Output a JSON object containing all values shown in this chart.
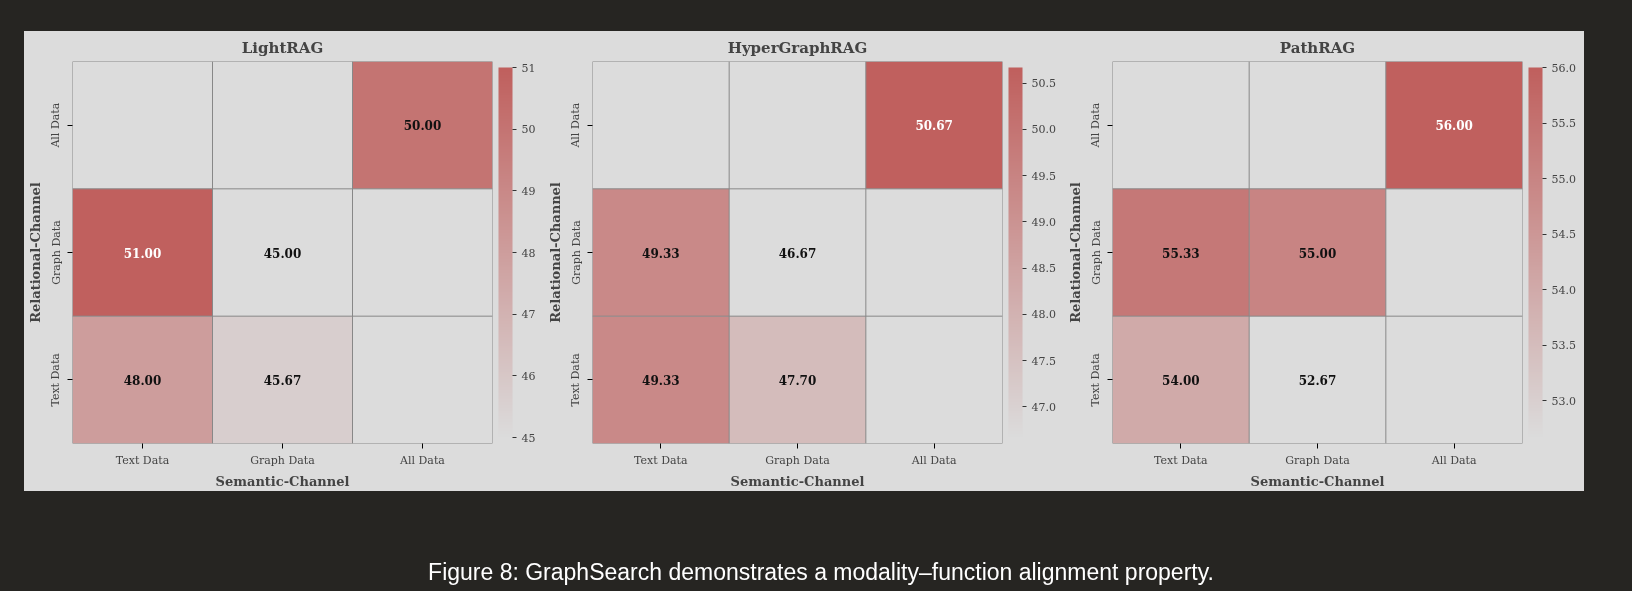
{
  "chart_data": [
    {
      "type": "heatmap",
      "title": "LightRAG",
      "xlabel": "Semantic-Channel",
      "ylabel": "Relational-Channel",
      "categories": [
        "Text Data",
        "Graph Data",
        "All Data"
      ],
      "y_categories": [
        "All Data",
        "Graph Data",
        "Text Data"
      ],
      "cells": [
        [
          null,
          null,
          50.0
        ],
        [
          51.0,
          45.0,
          null
        ],
        [
          48.0,
          45.67,
          null
        ]
      ],
      "cell_labels": [
        [
          null,
          null,
          "50.00"
        ],
        [
          "51.00",
          "45.00",
          null
        ],
        [
          "48.00",
          "45.67",
          null
        ]
      ],
      "clim": [
        45,
        51
      ],
      "cticks": [
        45,
        46,
        47,
        48,
        49,
        50,
        51
      ],
      "grid": true
    },
    {
      "type": "heatmap",
      "title": "HyperGraphRAG",
      "xlabel": "Semantic-Channel",
      "ylabel": "Relational-Channel",
      "categories": [
        "Text Data",
        "Graph Data",
        "All Data"
      ],
      "y_categories": [
        "All Data",
        "Graph Data",
        "Text Data"
      ],
      "cells": [
        [
          null,
          null,
          50.67
        ],
        [
          49.33,
          46.67,
          null
        ],
        [
          49.33,
          47.7,
          null
        ]
      ],
      "cell_labels": [
        [
          null,
          null,
          "50.67"
        ],
        [
          "49.33",
          "46.67",
          null
        ],
        [
          "49.33",
          "47.70",
          null
        ]
      ],
      "clim": [
        46.67,
        50.67
      ],
      "cticks": [
        {
          "value": 47,
          "label": "47.0"
        },
        47.5,
        {
          "value": 48,
          "label": "48.0"
        },
        48.5,
        {
          "value": 49,
          "label": "49.0"
        },
        49.5,
        {
          "value": 50,
          "label": "50.0"
        },
        50.5
      ],
      "grid": true
    },
    {
      "type": "heatmap",
      "title": "PathRAG",
      "xlabel": "Semantic-Channel",
      "ylabel": "Relational-Channel",
      "categories": [
        "Text Data",
        "Graph Data",
        "All Data"
      ],
      "y_categories": [
        "All Data",
        "Graph Data",
        "Text Data"
      ],
      "cells": [
        [
          null,
          null,
          56.0
        ],
        [
          55.33,
          55.0,
          null
        ],
        [
          54.0,
          52.67,
          null
        ]
      ],
      "cell_labels": [
        [
          null,
          null,
          "56.00"
        ],
        [
          "55.33",
          "55.00",
          null
        ],
        [
          "54.00",
          "52.67",
          null
        ]
      ],
      "clim": [
        52.67,
        56.0
      ],
      "cticks": [
        {
          "value": 53,
          "label": "53.0"
        },
        53.5,
        {
          "value": 54,
          "label": "54.0"
        },
        54.5,
        {
          "value": 55,
          "label": "55.0"
        },
        55.5,
        {
          "value": 56,
          "label": "56.0"
        }
      ],
      "grid": true
    },
    {
      "type": "other",
      "annotations": [
        "Figure 8: GraphSearch demonstrates a modality–function alignment property."
      ]
    }
  ]
}
